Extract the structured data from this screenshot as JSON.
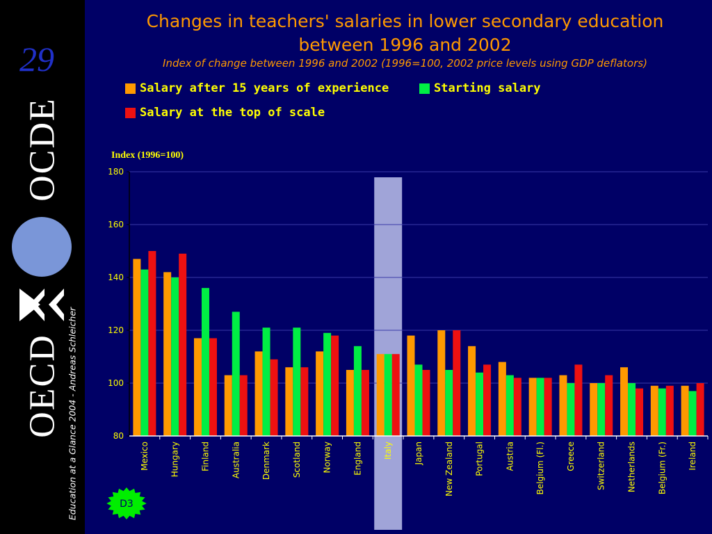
{
  "slide": {
    "page_number": "29",
    "footer": "Education at a Glance 2004 - Andreas Schleicher",
    "badge": "D3",
    "logo": {
      "top_text": "OCDE",
      "bottom_text": "OECD"
    }
  },
  "colors": {
    "background": "#000066",
    "sidebar": "#000000",
    "title": "#ff9900",
    "legend_text": "#ffff00",
    "tick_labels": "#ffff00",
    "series": [
      "#ff9900",
      "#00ee44",
      "#ee1111"
    ],
    "highlight": "#a0a4d8",
    "badge": "#00ee00",
    "gridline": "#3a3aa8"
  },
  "chart_data": {
    "type": "bar",
    "title": "Changes in teachers' salaries in lower secondary education between 1996 and 2002",
    "subtitle": "Index of change between 1996 and 2002 (1996=100, 2002 price levels using GDP deflators)",
    "ylabel": "Index (1996=100)",
    "xlabel": "",
    "ylim": [
      80,
      180
    ],
    "yticks": [
      80,
      100,
      120,
      140,
      160,
      180
    ],
    "grid": true,
    "legend_position": "top",
    "highlighted_category": "Italy",
    "categories": [
      "Mexico",
      "Hungary",
      "Finland",
      "Australia",
      "Denmark",
      "Scotland",
      "Norway",
      "England",
      "Italy",
      "Japan",
      "New Zealand",
      "Portugal",
      "Austria",
      "Belgium (Fl.)",
      "Greece",
      "Switzerland",
      "Netherlands",
      "Belgium (Fr.)",
      "Ireland"
    ],
    "series": [
      {
        "name": "Salary after 15 years of experience",
        "values": [
          147,
          142,
          117,
          103,
          112,
          106,
          112,
          105,
          111,
          118,
          120,
          114,
          108,
          102,
          103,
          100,
          106,
          99,
          99
        ]
      },
      {
        "name": "Starting salary",
        "values": [
          143,
          140,
          136,
          127,
          121,
          121,
          119,
          114,
          111,
          107,
          105,
          104,
          103,
          102,
          100,
          100,
          100,
          98,
          97
        ]
      },
      {
        "name": "Salary at the top of scale",
        "values": [
          150,
          149,
          117,
          103,
          109,
          106,
          118,
          105,
          111,
          105,
          120,
          107,
          102,
          102,
          107,
          103,
          98,
          99,
          100
        ]
      }
    ]
  }
}
